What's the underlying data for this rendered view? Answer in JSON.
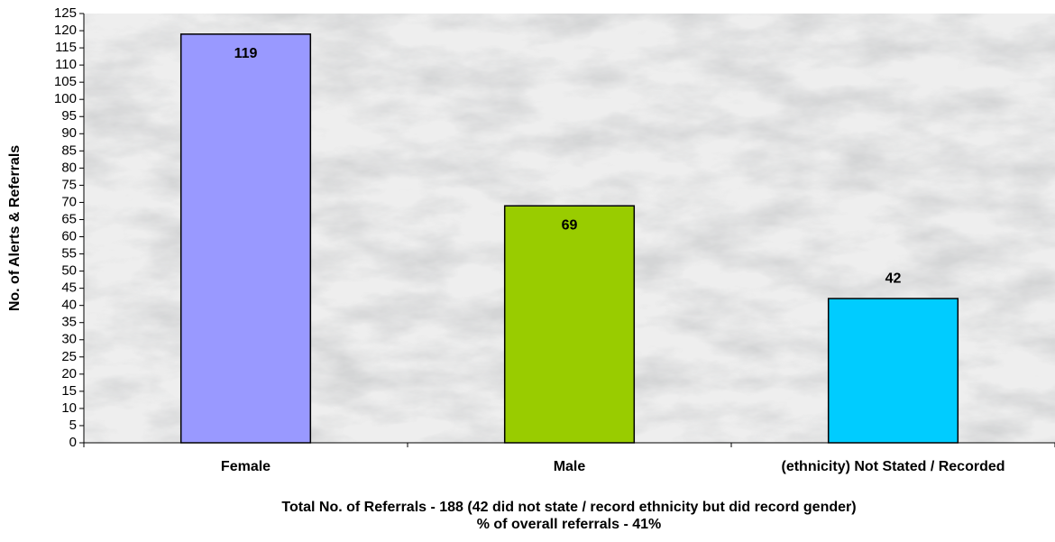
{
  "chart_data": {
    "type": "bar",
    "categories": [
      "Female",
      "Male",
      "(ethnicity) Not Stated / Recorded"
    ],
    "values": [
      119,
      69,
      42
    ],
    "colors": [
      "#9999ff",
      "#99cc00",
      "#00ccff"
    ],
    "y_label": "No. of Alerts & Referrals",
    "x_label": [
      "Total No. of Referrals - 188 (42 did not state / record ethnicity but did record gender)",
      "% of overall referrals - 41%"
    ],
    "ylim": [
      0,
      125
    ],
    "yticks": [
      0,
      5,
      10,
      15,
      20,
      25,
      30,
      35,
      40,
      45,
      50,
      55,
      60,
      65,
      70,
      75,
      80,
      85,
      90,
      95,
      100,
      105,
      110,
      115,
      120,
      125
    ]
  }
}
